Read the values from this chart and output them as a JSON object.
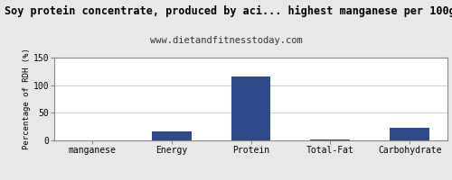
{
  "title": "Soy protein concentrate, produced by aci... highest manganese per 100g",
  "subtitle": "www.dietandfitnesstoday.com",
  "categories": [
    "manganese",
    "Energy",
    "Protein",
    "Total-Fat",
    "Carbohydrate"
  ],
  "values": [
    0,
    17,
    116,
    2,
    23
  ],
  "bar_color": "#2e4a8a",
  "ylabel": "Percentage of RDH (%)",
  "ylim": [
    0,
    150
  ],
  "yticks": [
    0,
    50,
    100,
    150
  ],
  "background_color": "#e8e8e8",
  "plot_bg_color": "#ffffff",
  "title_fontsize": 8.5,
  "subtitle_fontsize": 7.5,
  "axis_label_fontsize": 6.5,
  "tick_fontsize": 7
}
